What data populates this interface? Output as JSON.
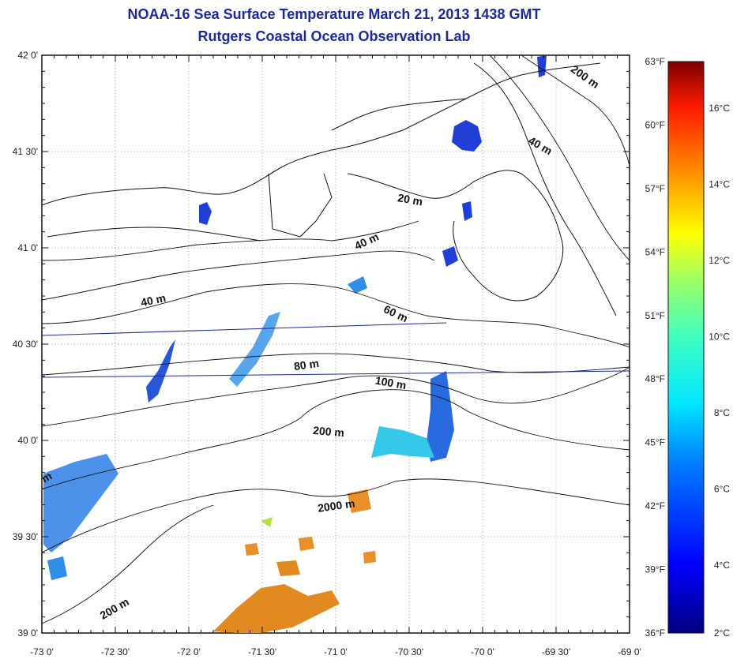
{
  "title": {
    "line1": "NOAA-16 Sea Surface Temperature March 21, 2013 1438 GMT",
    "line2": "Rutgers Coastal Ocean Observation Lab"
  },
  "map": {
    "lat_labels": [
      "42 0'",
      "41 30'",
      "41 0'",
      "40 30'",
      "40 0'",
      "39 30'",
      "39 0'"
    ],
    "lon_labels": [
      "-73 0'",
      "-72 30'",
      "-72 0'",
      "-71 30'",
      "-71 0'",
      "-70 30'",
      "-70 0'",
      "-69 30'",
      "-69 0'"
    ],
    "lat_range": [
      39.0,
      42.0
    ],
    "lon_range": [
      -73.0,
      -69.0
    ],
    "isobath_labels": [
      "200 m",
      "40 m",
      "20 m",
      "40 m",
      "40 m",
      "60 m",
      "80 m",
      "100 m",
      "200 m",
      "2000 m",
      "200 m",
      "m"
    ]
  },
  "colorbar": {
    "fahrenheit_labels": [
      "63°F",
      "60°F",
      "57°F",
      "54°F",
      "51°F",
      "48°F",
      "45°F",
      "42°F",
      "39°F",
      "36°F"
    ],
    "celsius_labels": [
      "16°C",
      "14°C",
      "12°C",
      "10°C",
      "8°C",
      "6°C",
      "4°C",
      "2°C"
    ]
  },
  "colors": {
    "title": "#1a2a9c",
    "cold": "#1f3fd6",
    "cool": "#2aa0e8",
    "warm": "#e08a20",
    "land_outline": "#111111"
  }
}
